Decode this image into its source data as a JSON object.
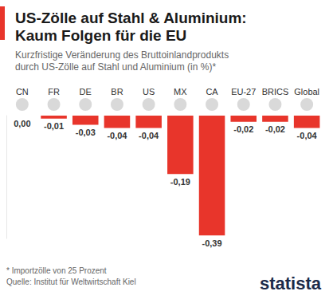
{
  "chart_data": {
    "type": "bar",
    "title": "US-Zölle auf Stahl & Aluminium:\nKaum Folgen für die EU",
    "subtitle": "Kurzfristige Veränderung des Bruttoinlandprodukts\ndurch US-Zölle auf Stahl und Aluminium (in %)*",
    "categories": [
      "CN",
      "FR",
      "DE",
      "BR",
      "US",
      "MX",
      "CA",
      "EU-27",
      "BRICS",
      "Global"
    ],
    "values": [
      0.0,
      -0.01,
      -0.03,
      -0.04,
      -0.04,
      -0.19,
      -0.39,
      -0.02,
      -0.02,
      -0.04
    ],
    "value_labels": [
      "0,00",
      "-0,01",
      "-0,03",
      "-0,04",
      "-0,04",
      "-0,19",
      "-0,39",
      "-0,02",
      "-0,02",
      "-0,04"
    ],
    "color": "#e8352b",
    "ylim": [
      -0.4,
      0
    ],
    "grid": false,
    "data_labels": true,
    "tick_labels": "x",
    "annotations": [
      "* Importzölle von 25 Prozent",
      "Quelle: Institut für Weltwirtschaft Kiel",
      "statista"
    ]
  }
}
